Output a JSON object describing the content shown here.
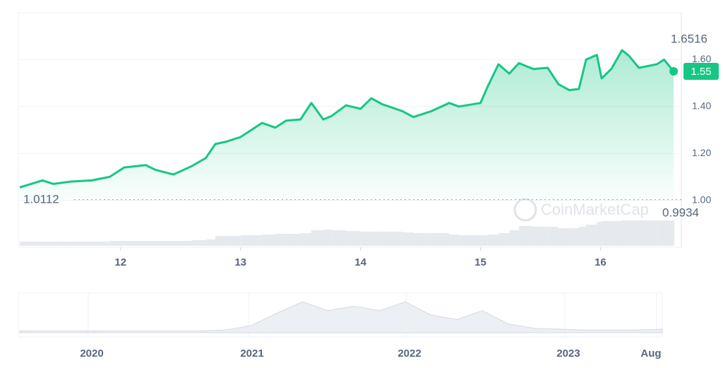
{
  "chart_data": {
    "type": "line",
    "color": "#16c784",
    "x": [
      11.16,
      11.35,
      11.44,
      11.59,
      11.76,
      11.91,
      12.03,
      12.21,
      12.29,
      12.44,
      12.59,
      12.71,
      12.79,
      12.88,
      13.0,
      13.09,
      13.18,
      13.29,
      13.38,
      13.5,
      13.59,
      13.69,
      13.76,
      13.88,
      14.0,
      14.09,
      14.18,
      14.35,
      14.44,
      14.59,
      14.74,
      14.82,
      15.0,
      15.06,
      15.15,
      15.24,
      15.32,
      15.44,
      15.56,
      15.65,
      15.74,
      15.82,
      15.88,
      15.97,
      16.01,
      16.09,
      16.18,
      16.24,
      16.32,
      16.47,
      16.53,
      16.61
    ],
    "values": [
      1.055,
      1.085,
      1.07,
      1.08,
      1.085,
      1.1,
      1.14,
      1.15,
      1.13,
      1.11,
      1.145,
      1.18,
      1.24,
      1.25,
      1.27,
      1.3,
      1.33,
      1.31,
      1.34,
      1.345,
      1.415,
      1.345,
      1.36,
      1.405,
      1.39,
      1.435,
      1.41,
      1.38,
      1.355,
      1.38,
      1.415,
      1.4,
      1.415,
      1.485,
      1.58,
      1.54,
      1.585,
      1.56,
      1.565,
      1.495,
      1.47,
      1.475,
      1.6,
      1.62,
      1.52,
      1.56,
      1.64,
      1.615,
      1.565,
      1.58,
      1.6,
      1.55
    ],
    "volume": [
      6,
      6,
      6,
      6,
      6,
      7,
      7,
      7,
      7,
      7,
      8,
      9,
      14,
      14,
      15,
      15,
      16,
      17,
      17,
      18,
      22,
      23,
      22,
      21,
      20,
      20,
      20,
      19,
      18,
      18,
      16,
      15,
      15,
      16,
      18,
      22,
      28,
      27,
      27,
      25,
      25,
      27,
      30,
      34,
      35,
      35,
      36,
      36,
      36,
      36,
      36,
      36
    ],
    "y2lim": [
      0,
      50
    ],
    "xlim": [
      11.16,
      16.68
    ],
    "xticks": [
      12,
      13,
      14,
      15,
      16
    ],
    "ylim": [
      0.8,
      1.8
    ],
    "yticks": [
      {
        "value": 1.0,
        "label": "1.00"
      },
      {
        "value": 1.2,
        "label": "1.20"
      },
      {
        "value": 1.4,
        "label": "1.40"
      },
      {
        "value": 1.6,
        "label": "1.60"
      }
    ],
    "grid": true,
    "high": 1.6516,
    "low": 1.0112,
    "range_low": 0.9934,
    "current": 1.55,
    "watermark": "CoinMarketCap",
    "navigator": {
      "labels": [
        "2020",
        "2021",
        "2022",
        "2023",
        "Aug"
      ],
      "values": [
        2,
        2,
        2,
        2,
        2,
        2,
        2,
        2,
        3,
        8,
        22,
        35,
        25,
        30,
        25,
        35,
        20,
        15,
        25,
        10,
        5,
        4,
        3,
        3,
        3,
        4
      ],
      "ylim": [
        0,
        40
      ]
    }
  }
}
